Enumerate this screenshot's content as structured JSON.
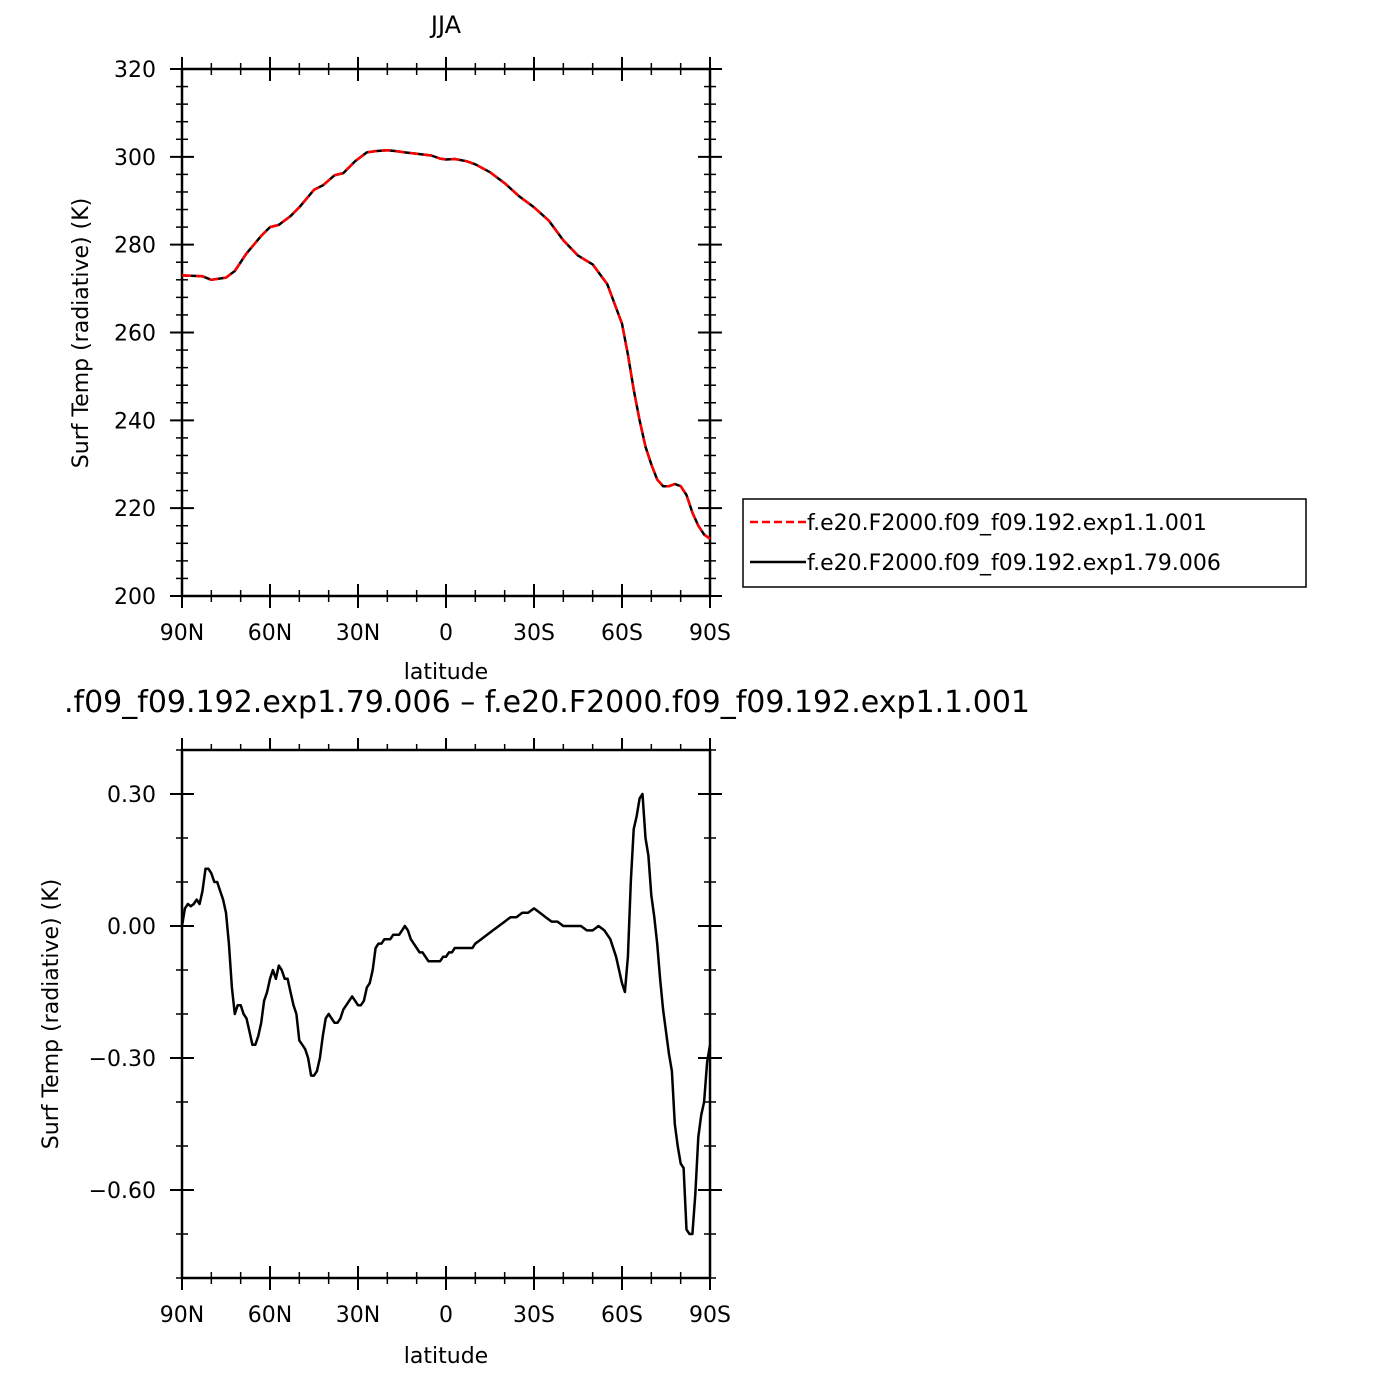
{
  "chart_data": [
    {
      "type": "line",
      "title": "JJA",
      "xlabel": "latitude",
      "ylabel": "Surf Temp (radiative) (K)",
      "xlim": [
        90,
        -90
      ],
      "ylim": [
        200,
        320
      ],
      "x_ticks": [
        90,
        60,
        30,
        0,
        -30,
        -60,
        -90
      ],
      "x_tick_labels": [
        "90N",
        "60N",
        "30N",
        "0",
        "30S",
        "60S",
        "90S"
      ],
      "y_ticks": [
        200,
        220,
        240,
        260,
        280,
        300,
        320
      ],
      "y_tick_labels": [
        "200",
        "220",
        "240",
        "260",
        "280",
        "300",
        "320"
      ],
      "grid": false,
      "legend": "right",
      "series": [
        {
          "name": "f.e20.F2000.f09_f09.192.exp1.1.001",
          "color": "#ff0000",
          "style": "dashed",
          "x": [
            90,
            83,
            80,
            75,
            72,
            68,
            63,
            60,
            57,
            53,
            50,
            45,
            42,
            38,
            35,
            31,
            27,
            24,
            20,
            17,
            14,
            10,
            5,
            2,
            0,
            -3,
            -7,
            -10,
            -15,
            -20,
            -25,
            -30,
            -35,
            -40,
            -45,
            -50,
            -55,
            -60,
            -62,
            -64,
            -66,
            -68,
            -70,
            -72,
            -74,
            -76,
            -78,
            -80,
            -82,
            -84,
            -86,
            -88,
            -90
          ],
          "values": [
            273,
            272.8,
            272,
            272.5,
            274,
            278,
            282,
            284,
            284.5,
            286.5,
            288.5,
            292.5,
            293.5,
            295.8,
            296.3,
            299,
            301,
            301.3,
            301.5,
            301.3,
            301,
            300.7,
            300.3,
            299.6,
            299.4,
            299.5,
            299,
            298.3,
            296.5,
            294,
            291,
            288.5,
            285.5,
            281,
            277.5,
            275.5,
            271,
            262,
            255,
            247,
            240,
            234,
            230,
            226.5,
            225,
            225,
            225.5,
            225,
            223,
            219,
            216,
            214,
            213
          ]
        },
        {
          "name": "f.e20.F2000.f09_f09.192.exp1.79.006",
          "color": "#000000",
          "style": "solid",
          "x": [
            90,
            83,
            80,
            75,
            72,
            68,
            63,
            60,
            57,
            53,
            50,
            45,
            42,
            38,
            35,
            31,
            27,
            24,
            20,
            17,
            14,
            10,
            5,
            2,
            0,
            -3,
            -7,
            -10,
            -15,
            -20,
            -25,
            -30,
            -35,
            -40,
            -45,
            -50,
            -55,
            -60,
            -62,
            -64,
            -66,
            -68,
            -70,
            -72,
            -74,
            -76,
            -78,
            -80,
            -82,
            -84,
            -86,
            -88,
            -90
          ],
          "values": [
            273,
            272.8,
            272,
            272.5,
            274,
            278,
            282,
            284,
            284.5,
            286.5,
            288.5,
            292.5,
            293.5,
            295.8,
            296.3,
            299,
            301,
            301.3,
            301.5,
            301.3,
            301,
            300.7,
            300.3,
            299.6,
            299.4,
            299.5,
            299,
            298.3,
            296.5,
            294,
            291,
            288.5,
            285.5,
            281,
            277.5,
            275.5,
            271,
            262,
            255,
            247,
            240,
            234,
            230,
            226.5,
            225,
            225,
            225.5,
            225,
            223,
            219,
            216,
            214,
            213
          ]
        }
      ]
    },
    {
      "type": "line",
      "title": ".f09_f09.192.exp1.79.006 – f.e20.F2000.f09_f09.192.exp1.1.001",
      "xlabel": "latitude",
      "ylabel": "Surf Temp (radiative) (K)",
      "xlim": [
        90,
        -90
      ],
      "ylim": [
        -0.8,
        0.4
      ],
      "x_ticks": [
        90,
        60,
        30,
        0,
        -30,
        -60,
        -90
      ],
      "x_tick_labels": [
        "90N",
        "60N",
        "30N",
        "0",
        "30S",
        "60S",
        "90S"
      ],
      "y_ticks": [
        -0.6,
        -0.3,
        0,
        0.3
      ],
      "y_tick_labels": [
        "−0.60",
        "−0.30",
        "0.00",
        "0.30"
      ],
      "grid": false,
      "series": [
        {
          "color": "#000000",
          "style": "solid",
          "x": [
            90,
            89,
            88,
            87,
            86,
            85,
            84,
            83,
            82,
            81,
            80,
            79,
            78,
            77,
            76,
            75,
            74,
            73,
            72,
            71,
            70,
            69,
            68,
            67,
            66,
            65,
            64,
            63,
            62,
            61,
            60,
            59,
            58,
            57,
            56,
            55,
            54,
            53,
            52,
            51,
            50,
            49,
            48,
            47,
            46,
            45,
            44,
            43,
            42,
            41,
            40,
            39,
            38,
            37,
            36,
            35,
            34,
            33,
            32,
            31,
            30,
            29,
            28,
            27,
            26,
            25,
            24,
            23,
            22,
            21,
            20,
            19,
            18,
            17,
            16,
            15,
            14,
            13,
            12,
            11,
            10,
            9,
            8,
            7,
            6,
            5,
            4,
            3,
            2,
            1,
            0,
            -1,
            -2,
            -3,
            -4,
            -5,
            -6,
            -7,
            -8,
            -9,
            -10,
            -12,
            -14,
            -16,
            -18,
            -20,
            -22,
            -24,
            -26,
            -28,
            -30,
            -32,
            -34,
            -36,
            -38,
            -40,
            -42,
            -44,
            -46,
            -48,
            -50,
            -52,
            -54,
            -56,
            -58,
            -60,
            -61,
            -62,
            -63,
            -64,
            -65,
            -66,
            -67,
            -68,
            -69,
            -70,
            -71,
            -72,
            -73,
            -74,
            -75,
            -76,
            -77,
            -78,
            -79,
            -80,
            -81,
            -82,
            -83,
            -84,
            -85,
            -86,
            -87,
            -88,
            -89,
            -90
          ],
          "values": [
            0.0,
            0.04,
            0.05,
            0.045,
            0.05,
            0.06,
            0.05,
            0.08,
            0.13,
            0.13,
            0.12,
            0.1,
            0.1,
            0.08,
            0.06,
            0.03,
            -0.04,
            -0.14,
            -0.2,
            -0.18,
            -0.18,
            -0.2,
            -0.21,
            -0.24,
            -0.27,
            -0.27,
            -0.25,
            -0.22,
            -0.17,
            -0.15,
            -0.12,
            -0.1,
            -0.12,
            -0.09,
            -0.1,
            -0.12,
            -0.12,
            -0.15,
            -0.18,
            -0.2,
            -0.26,
            -0.27,
            -0.28,
            -0.3,
            -0.34,
            -0.34,
            -0.33,
            -0.3,
            -0.25,
            -0.21,
            -0.2,
            -0.21,
            -0.22,
            -0.22,
            -0.21,
            -0.19,
            -0.18,
            -0.17,
            -0.16,
            -0.17,
            -0.18,
            -0.18,
            -0.17,
            -0.14,
            -0.13,
            -0.1,
            -0.05,
            -0.04,
            -0.04,
            -0.03,
            -0.03,
            -0.03,
            -0.02,
            -0.02,
            -0.02,
            -0.01,
            0.0,
            -0.01,
            -0.03,
            -0.04,
            -0.05,
            -0.06,
            -0.06,
            -0.07,
            -0.08,
            -0.08,
            -0.08,
            -0.08,
            -0.08,
            -0.07,
            -0.07,
            -0.06,
            -0.06,
            -0.05,
            -0.05,
            -0.05,
            -0.05,
            -0.05,
            -0.05,
            -0.05,
            -0.04,
            -0.03,
            -0.02,
            -0.01,
            0.0,
            0.01,
            0.02,
            0.02,
            0.03,
            0.03,
            0.04,
            0.03,
            0.02,
            0.01,
            0.01,
            0.0,
            0.0,
            0.0,
            0.0,
            -0.01,
            -0.01,
            0.0,
            -0.01,
            -0.03,
            -0.07,
            -0.13,
            -0.15,
            -0.07,
            0.1,
            0.22,
            0.25,
            0.29,
            0.3,
            0.2,
            0.16,
            0.07,
            0.02,
            -0.04,
            -0.12,
            -0.19,
            -0.24,
            -0.29,
            -0.33,
            -0.45,
            -0.5,
            -0.54,
            -0.55,
            -0.69,
            -0.7,
            -0.7,
            -0.61,
            -0.48,
            -0.43,
            -0.4,
            -0.31,
            -0.27
          ]
        }
      ]
    }
  ]
}
